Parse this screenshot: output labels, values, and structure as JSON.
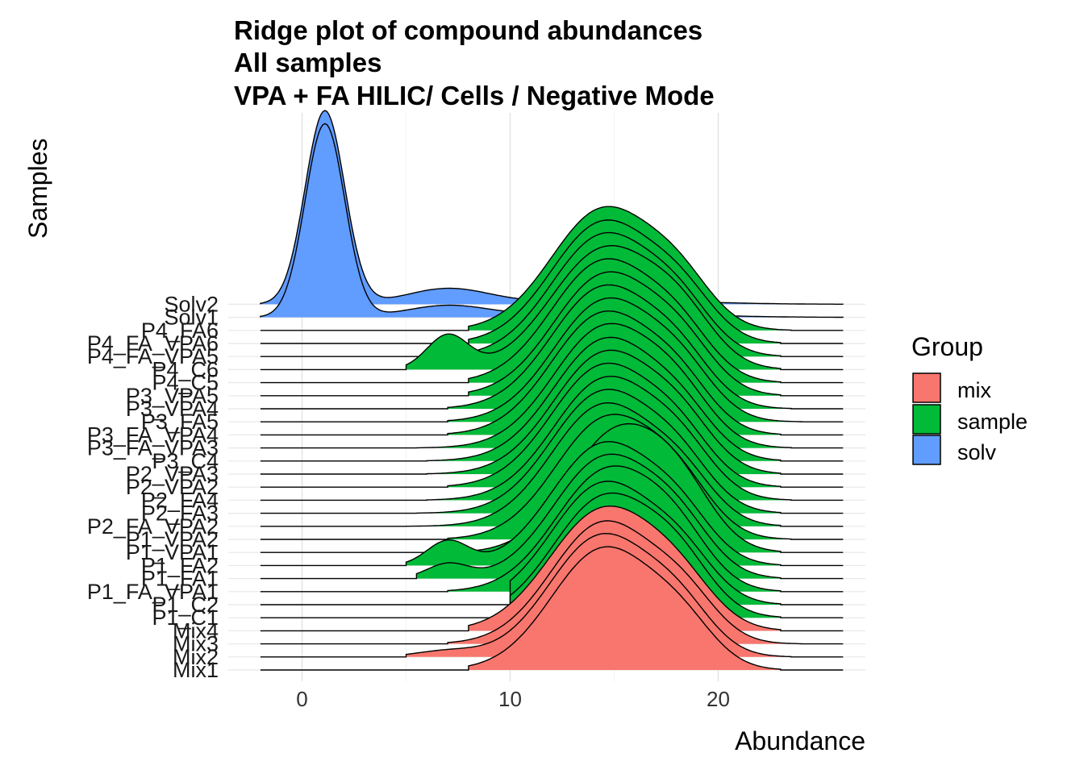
{
  "chart_data": {
    "type": "ridgeline",
    "title_lines": [
      "Ridge plot of compound abundances",
      "All samples",
      "VPA + FA HILIC/ Cells / Negative Mode"
    ],
    "xlabel": "Abundance",
    "ylabel": "Samples",
    "xlim": [
      -3.5,
      27
    ],
    "x_ticks": [
      0,
      10,
      20
    ],
    "grid": true,
    "legend": {
      "title": "Group",
      "position": "right",
      "entries": [
        {
          "label": "mix",
          "color": "#F8766D"
        },
        {
          "label": "sample",
          "color": "#00BA38"
        },
        {
          "label": "solv",
          "color": "#619CFF"
        }
      ]
    },
    "series": [
      {
        "name": "Mix1",
        "group": "mix",
        "range": [
          8,
          23
        ],
        "peaks": [
          [
            14.5,
            1.0,
            2.5
          ],
          [
            18.3,
            0.28,
            1.6
          ]
        ]
      },
      {
        "name": "Mix2",
        "group": "mix",
        "range": [
          5,
          23.5
        ],
        "peaks": [
          [
            14.4,
            1.0,
            2.5
          ],
          [
            18.2,
            0.3,
            1.6
          ],
          [
            7,
            0.05,
            1.5
          ]
        ]
      },
      {
        "name": "Mix3",
        "group": "mix",
        "range": [
          7,
          24
        ],
        "peaks": [
          [
            14.5,
            1.0,
            2.5
          ],
          [
            18.4,
            0.3,
            1.6
          ]
        ]
      },
      {
        "name": "Mix4",
        "group": "mix",
        "range": [
          8,
          23
        ],
        "peaks": [
          [
            14.5,
            1.0,
            2.6
          ],
          [
            18.2,
            0.28,
            1.7
          ]
        ]
      },
      {
        "name": "P1_C1",
        "group": "sample",
        "range": [
          10,
          23
        ],
        "peaks": [
          [
            14.6,
            1.0,
            2.5
          ],
          [
            18.2,
            0.32,
            1.6
          ]
        ]
      },
      {
        "name": "P1_C2",
        "group": "sample",
        "range": [
          10,
          23
        ],
        "peaks": [
          [
            14.5,
            1.0,
            2.5
          ],
          [
            18.3,
            0.3,
            1.6
          ]
        ]
      },
      {
        "name": "P1_FA_VPA1",
        "group": "sample",
        "range": [
          7,
          23
        ],
        "peaks": [
          [
            14.7,
            1.0,
            2.5
          ],
          [
            18.1,
            0.3,
            1.6
          ]
        ]
      },
      {
        "name": "P1_FA1",
        "group": "sample",
        "range": [
          5.5,
          23
        ],
        "peaks": [
          [
            14.6,
            1.0,
            2.5
          ],
          [
            18.2,
            0.3,
            1.6
          ],
          [
            7,
            0.12,
            1.0
          ]
        ]
      },
      {
        "name": "P1_FA2",
        "group": "sample",
        "range": [
          5,
          23
        ],
        "peaks": [
          [
            14.5,
            1.0,
            2.5
          ],
          [
            18.2,
            0.3,
            1.6
          ],
          [
            7,
            0.2,
            1.0
          ]
        ]
      },
      {
        "name": "P1_VPA1",
        "group": "sample",
        "range": [
          7,
          23
        ],
        "peaks": [
          [
            15.2,
            1.0,
            2.4
          ],
          [
            18.3,
            0.32,
            1.6
          ]
        ]
      },
      {
        "name": "P1_VPA2",
        "group": "sample",
        "range": [
          7,
          23.5
        ],
        "peaks": [
          [
            14.7,
            1.0,
            2.5
          ],
          [
            18.2,
            0.3,
            1.6
          ]
        ]
      },
      {
        "name": "P2_FA_VPA2",
        "group": "sample",
        "range": [
          5,
          23
        ],
        "peaks": [
          [
            14.5,
            1.0,
            2.5
          ],
          [
            18.3,
            0.3,
            1.6
          ]
        ]
      },
      {
        "name": "P2_FA3",
        "group": "sample",
        "range": [
          5.5,
          23
        ],
        "peaks": [
          [
            14.5,
            1.0,
            2.5
          ],
          [
            18.2,
            0.3,
            1.6
          ]
        ]
      },
      {
        "name": "P2_FA4",
        "group": "sample",
        "range": [
          6,
          23.5
        ],
        "peaks": [
          [
            14.6,
            1.0,
            2.5
          ],
          [
            18.3,
            0.3,
            1.6
          ]
        ]
      },
      {
        "name": "P2_VPA2",
        "group": "sample",
        "range": [
          7,
          23
        ],
        "peaks": [
          [
            14.5,
            1.0,
            2.5
          ],
          [
            18.2,
            0.3,
            1.6
          ]
        ]
      },
      {
        "name": "P2_VPA3",
        "group": "sample",
        "range": [
          6,
          23
        ],
        "peaks": [
          [
            14.6,
            1.0,
            2.5
          ],
          [
            18.3,
            0.3,
            1.6
          ]
        ]
      },
      {
        "name": "P3_C4",
        "group": "sample",
        "range": [
          6,
          23
        ],
        "peaks": [
          [
            14.6,
            1.0,
            2.5
          ],
          [
            18.3,
            0.28,
            1.6
          ]
        ]
      },
      {
        "name": "P3_FA_VPA3",
        "group": "sample",
        "range": [
          5.5,
          23.5
        ],
        "peaks": [
          [
            14.6,
            1.0,
            2.5
          ],
          [
            18.2,
            0.3,
            1.6
          ]
        ]
      },
      {
        "name": "P3_FA_VPA4",
        "group": "sample",
        "range": [
          7,
          23
        ],
        "peaks": [
          [
            14.5,
            1.0,
            2.5
          ],
          [
            18.2,
            0.3,
            1.6
          ]
        ]
      },
      {
        "name": "P3_FA5",
        "group": "sample",
        "range": [
          7,
          24
        ],
        "peaks": [
          [
            14.6,
            1.0,
            2.5
          ],
          [
            18.3,
            0.3,
            1.6
          ]
        ]
      },
      {
        "name": "P3_VPA4",
        "group": "sample",
        "range": [
          7,
          23.5
        ],
        "peaks": [
          [
            14.5,
            1.0,
            2.5
          ],
          [
            18.2,
            0.3,
            1.6
          ]
        ]
      },
      {
        "name": "P3_VPA5",
        "group": "sample",
        "range": [
          8,
          23
        ],
        "peaks": [
          [
            14.6,
            1.0,
            2.5
          ],
          [
            18.3,
            0.3,
            1.6
          ]
        ]
      },
      {
        "name": "P4_C5",
        "group": "sample",
        "range": [
          8,
          23
        ],
        "peaks": [
          [
            14.5,
            1.0,
            2.5
          ],
          [
            18.2,
            0.3,
            1.6
          ]
        ]
      },
      {
        "name": "P4_C6",
        "group": "sample",
        "range": [
          5,
          23
        ],
        "peaks": [
          [
            14.6,
            1.0,
            2.6
          ],
          [
            18.3,
            0.3,
            1.6
          ],
          [
            7,
            0.28,
            1.0
          ]
        ]
      },
      {
        "name": "P4_FA_VPA5",
        "group": "sample",
        "range": [
          7,
          23
        ],
        "peaks": [
          [
            14.5,
            1.0,
            2.5
          ],
          [
            18.2,
            0.3,
            1.6
          ]
        ]
      },
      {
        "name": "P4_FA_VPA6",
        "group": "sample",
        "range": [
          8,
          23
        ],
        "peaks": [
          [
            14.5,
            1.0,
            2.5
          ],
          [
            18.3,
            0.3,
            1.6
          ]
        ]
      },
      {
        "name": "P4_FA6",
        "group": "sample",
        "range": [
          8,
          23.5
        ],
        "peaks": [
          [
            14.5,
            1.0,
            2.5
          ],
          [
            18.2,
            0.3,
            1.6
          ]
        ]
      },
      {
        "name": "Solv1",
        "group": "solv",
        "range": [
          -2,
          26
        ],
        "peaks": [
          [
            1.1,
            1.0,
            0.95
          ],
          [
            7,
            0.06,
            2.0
          ],
          [
            15,
            0.02,
            4
          ]
        ]
      },
      {
        "name": "Solv2",
        "group": "solv",
        "range": [
          -2,
          26
        ],
        "peaks": [
          [
            1.1,
            1.0,
            0.95
          ],
          [
            7,
            0.08,
            2.0
          ],
          [
            15,
            0.02,
            4
          ]
        ]
      }
    ]
  }
}
